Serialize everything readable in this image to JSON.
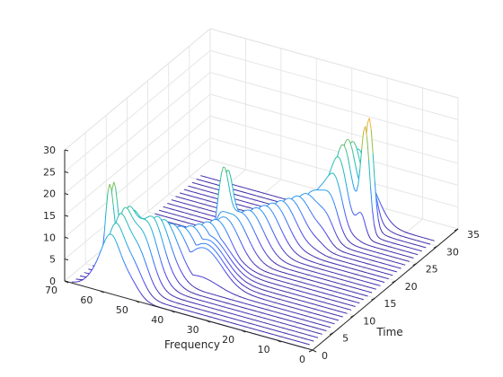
{
  "chart_data": {
    "type": "waterfall-3d",
    "xlabel": "Time",
    "ylabel": "Frequency",
    "zlabel": "",
    "title": "",
    "xlim": [
      0,
      35
    ],
    "ylim": [
      0,
      70
    ],
    "zlim": [
      0,
      30
    ],
    "xticks": [
      "0",
      "5",
      "10",
      "15",
      "20",
      "25",
      "30",
      "35"
    ],
    "yticks": [
      "0",
      "10",
      "20",
      "30",
      "40",
      "50",
      "60",
      "70"
    ],
    "zticks": [
      "0",
      "5",
      "10",
      "15",
      "20",
      "25",
      "30"
    ],
    "grid": true,
    "colormap": [
      "#3e26a8",
      "#4949f2",
      "#2e87f7",
      "#1cb3d3",
      "#2cc29e",
      "#a5be35",
      "#fcb13b",
      "#f9fb15"
    ],
    "time_slices": 32,
    "peaks": [
      {
        "time": 4.5,
        "freq": 62,
        "height": 24,
        "width_time": 0.8,
        "width_freq": 1.2
      },
      {
        "time": 4.5,
        "freq": 57,
        "height": 11,
        "width_time": 3.0,
        "width_freq": 2.0
      },
      {
        "time": 4.5,
        "freq": 51,
        "height": 5,
        "width_time": 3.0,
        "width_freq": 2.5
      },
      {
        "time": 28.5,
        "freq": 18,
        "height": 28,
        "width_time": 0.8,
        "width_freq": 1.2
      },
      {
        "time": 28.5,
        "freq": 24,
        "height": 10,
        "width_time": 3.0,
        "width_freq": 2.0
      },
      {
        "time": 16.5,
        "freq": 44,
        "height": 18,
        "width_time": 0.8,
        "width_freq": 1.5
      }
    ],
    "ridges": [
      {
        "time_start": 0,
        "time_end": 31,
        "freq_start": 57,
        "freq_end": 22,
        "height": 10,
        "width_freq": 4
      },
      {
        "time_start": 8,
        "time_end": 14,
        "freq_start": 40,
        "freq_end": 44,
        "height": 8,
        "width_freq": 5
      }
    ]
  }
}
